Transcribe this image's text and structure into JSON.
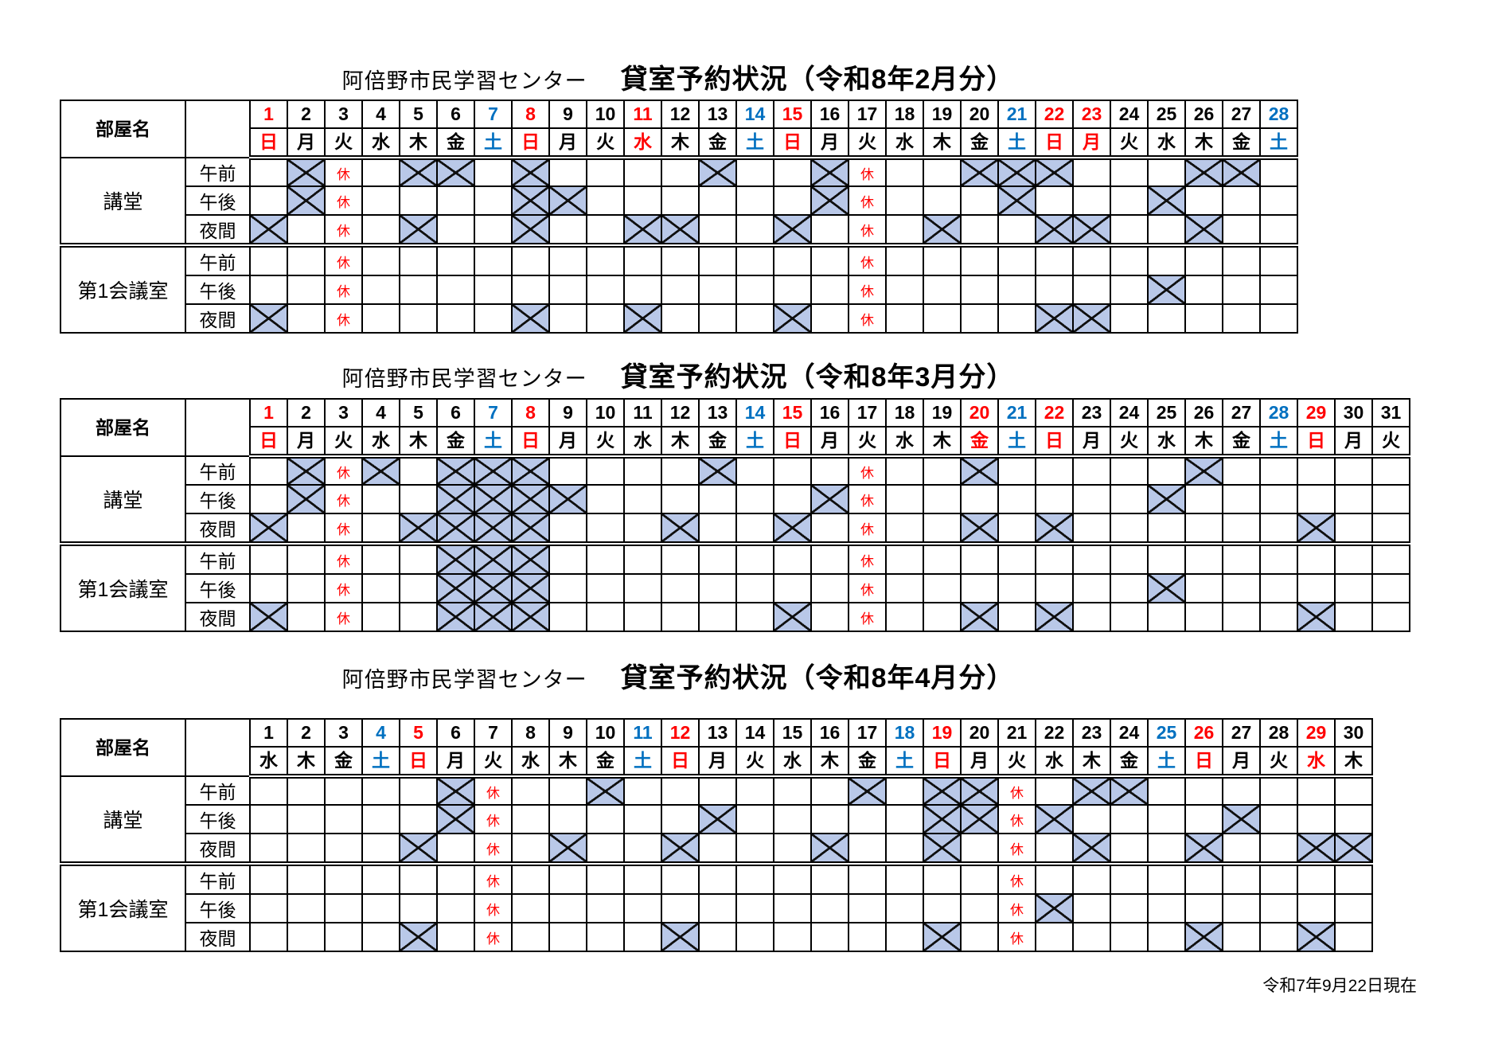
{
  "page": {
    "center_name": "阿倍野市民学習センター",
    "room_header": "部屋名",
    "closed_label": "休",
    "footer": "令和7年9月22日現在",
    "colors": {
      "red": "#ff0000",
      "blue": "#0070c0",
      "reserved_fill": "#b9c8e8",
      "grid": "#000000"
    }
  },
  "rooms": [
    {
      "name": "講堂",
      "slots": [
        "午前",
        "午後",
        "夜間"
      ]
    },
    {
      "name": "第1会議室",
      "slots": [
        "午前",
        "午後",
        "夜間"
      ]
    }
  ],
  "months": [
    {
      "title": "貸室予約状況（令和8年2月分）",
      "days": 28,
      "dates": [
        1,
        2,
        3,
        4,
        5,
        6,
        7,
        8,
        9,
        10,
        11,
        12,
        13,
        14,
        15,
        16,
        17,
        18,
        19,
        20,
        21,
        22,
        23,
        24,
        25,
        26,
        27,
        28
      ],
      "dows": [
        "日",
        "月",
        "火",
        "水",
        "木",
        "金",
        "土",
        "日",
        "月",
        "火",
        "水",
        "木",
        "金",
        "土",
        "日",
        "月",
        "火",
        "水",
        "木",
        "金",
        "土",
        "日",
        "月",
        "火",
        "水",
        "木",
        "金",
        "土"
      ],
      "red_days": [
        1,
        8,
        11,
        15,
        22,
        23
      ],
      "blue_days": [
        7,
        14,
        21,
        28
      ],
      "rows": [
        {
          "room": "講堂",
          "slot": "午前",
          "x": [
            2,
            5,
            6,
            8,
            13,
            16,
            20,
            21,
            22,
            26,
            27
          ],
          "closed": [
            3,
            17
          ]
        },
        {
          "room": "講堂",
          "slot": "午後",
          "x": [
            2,
            8,
            9,
            16,
            21,
            25
          ],
          "closed": [
            3,
            17
          ]
        },
        {
          "room": "講堂",
          "slot": "夜間",
          "x": [
            1,
            5,
            8,
            11,
            12,
            15,
            19,
            22,
            23,
            26
          ],
          "closed": [
            3,
            17
          ]
        },
        {
          "room": "第1会議室",
          "slot": "午前",
          "x": [],
          "closed": [
            3,
            17
          ]
        },
        {
          "room": "第1会議室",
          "slot": "午後",
          "x": [
            25
          ],
          "closed": [
            3,
            17
          ]
        },
        {
          "room": "第1会議室",
          "slot": "夜間",
          "x": [
            1,
            8,
            11,
            15,
            22,
            23
          ],
          "closed": [
            3,
            17
          ]
        }
      ]
    },
    {
      "title": "貸室予約状況（令和8年3月分）",
      "days": 31,
      "dates": [
        1,
        2,
        3,
        4,
        5,
        6,
        7,
        8,
        9,
        10,
        11,
        12,
        13,
        14,
        15,
        16,
        17,
        18,
        19,
        20,
        21,
        22,
        23,
        24,
        25,
        26,
        27,
        28,
        29,
        30,
        31
      ],
      "dows": [
        "日",
        "月",
        "火",
        "水",
        "木",
        "金",
        "土",
        "日",
        "月",
        "火",
        "水",
        "木",
        "金",
        "土",
        "日",
        "月",
        "火",
        "水",
        "木",
        "金",
        "土",
        "日",
        "月",
        "火",
        "水",
        "木",
        "金",
        "土",
        "日",
        "月",
        "火"
      ],
      "red_days": [
        1,
        8,
        15,
        20,
        22,
        29
      ],
      "blue_days": [
        7,
        14,
        21,
        28
      ],
      "rows": [
        {
          "room": "講堂",
          "slot": "午前",
          "x": [
            2,
            4,
            6,
            7,
            8,
            13,
            20,
            26
          ],
          "closed": [
            3,
            17
          ]
        },
        {
          "room": "講堂",
          "slot": "午後",
          "x": [
            2,
            6,
            7,
            8,
            9,
            16,
            25
          ],
          "closed": [
            3,
            17
          ]
        },
        {
          "room": "講堂",
          "slot": "夜間",
          "x": [
            1,
            5,
            6,
            7,
            8,
            12,
            15,
            20,
            22,
            29
          ],
          "closed": [
            3,
            17
          ]
        },
        {
          "room": "第1会議室",
          "slot": "午前",
          "x": [
            6,
            7,
            8
          ],
          "closed": [
            3,
            17
          ]
        },
        {
          "room": "第1会議室",
          "slot": "午後",
          "x": [
            6,
            7,
            8,
            25
          ],
          "closed": [
            3,
            17
          ]
        },
        {
          "room": "第1会議室",
          "slot": "夜間",
          "x": [
            1,
            6,
            7,
            8,
            15,
            20,
            22,
            29
          ],
          "closed": [
            3,
            17
          ]
        }
      ]
    },
    {
      "title": "貸室予約状況（令和8年4月分）",
      "days": 30,
      "dates": [
        1,
        2,
        3,
        4,
        5,
        6,
        7,
        8,
        9,
        10,
        11,
        12,
        13,
        14,
        15,
        16,
        17,
        18,
        19,
        20,
        21,
        22,
        23,
        24,
        25,
        26,
        27,
        28,
        29,
        30
      ],
      "dows": [
        "水",
        "木",
        "金",
        "土",
        "日",
        "月",
        "火",
        "水",
        "木",
        "金",
        "土",
        "日",
        "月",
        "火",
        "水",
        "木",
        "金",
        "土",
        "日",
        "月",
        "火",
        "水",
        "木",
        "金",
        "土",
        "日",
        "月",
        "火",
        "水",
        "木"
      ],
      "red_days": [
        5,
        12,
        19,
        26,
        29
      ],
      "blue_days": [
        4,
        11,
        18,
        25
      ],
      "rows": [
        {
          "room": "講堂",
          "slot": "午前",
          "x": [
            6,
            10,
            17,
            19,
            20,
            23,
            24
          ],
          "closed": [
            7,
            21
          ]
        },
        {
          "room": "講堂",
          "slot": "午後",
          "x": [
            6,
            13,
            19,
            20,
            22,
            27
          ],
          "closed": [
            7,
            21
          ]
        },
        {
          "room": "講堂",
          "slot": "夜間",
          "x": [
            5,
            9,
            12,
            16,
            19,
            23,
            26,
            29,
            30
          ],
          "closed": [
            7,
            21
          ]
        },
        {
          "room": "第1会議室",
          "slot": "午前",
          "x": [],
          "closed": [
            7,
            21
          ]
        },
        {
          "room": "第1会議室",
          "slot": "午後",
          "x": [
            22
          ],
          "closed": [
            7,
            21
          ]
        },
        {
          "room": "第1会議室",
          "slot": "夜間",
          "x": [
            5,
            12,
            19,
            26,
            29
          ],
          "closed": [
            7,
            21
          ]
        }
      ]
    }
  ]
}
